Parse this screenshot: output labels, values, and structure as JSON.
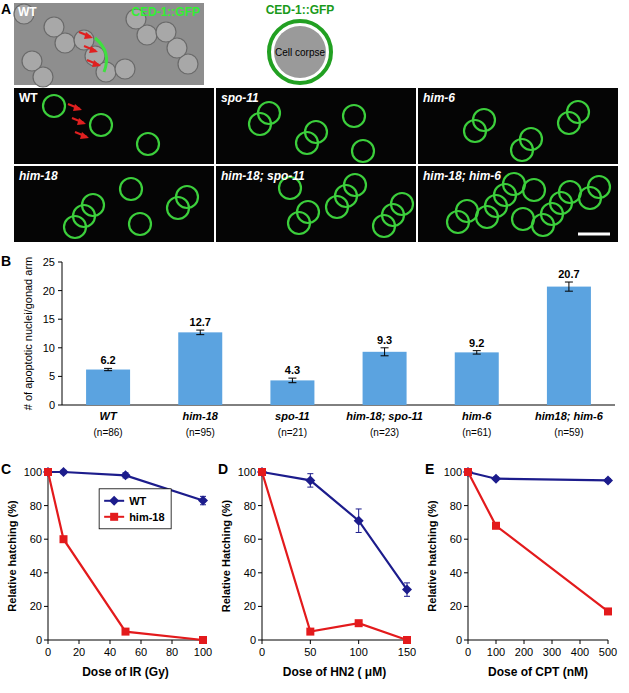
{
  "panel_a": {
    "panel": "A",
    "dic_label": "WT",
    "channel_label": "CED-1::GFP",
    "schematic_label": "CED-1::GFP",
    "schematic_inner": "Cell corpse",
    "images": [
      "WT",
      "spo-11",
      "him-6",
      "him-18",
      "him-18; spo-11",
      "him-18; him-6"
    ]
  },
  "chart_data": [
    {
      "panel": "B",
      "type": "bar",
      "categories": [
        "WT",
        "him-18",
        "spo-11",
        "him-18; spo-11",
        "him-6",
        "him18; him-6"
      ],
      "category_notes": [
        "(n=86)",
        "(n=95)",
        "(n=21)",
        "(n=23)",
        "(n=61)",
        "(n=59)"
      ],
      "values": [
        6.2,
        12.7,
        4.3,
        9.3,
        9.2,
        20.7
      ],
      "errors": [
        0.2,
        0.4,
        0.4,
        0.7,
        0.3,
        0.8
      ],
      "color": "#5ba3e0",
      "ylabel": "# of apoptotic nuclei/gonad arm",
      "ylim": [
        0,
        25
      ],
      "yticks": [
        0,
        5,
        10,
        15,
        20,
        25
      ],
      "data_labels": true,
      "grid": false
    },
    {
      "panel": "C",
      "type": "line",
      "x": [
        0,
        10,
        50,
        100
      ],
      "xlabel": "Dose of IR (Gy)",
      "ylabel": "Relative hatching (%)",
      "xlim": [
        0,
        100
      ],
      "xticks": [
        0,
        20,
        40,
        60,
        80,
        100
      ],
      "ylim": [
        0,
        100
      ],
      "yticks": [
        0,
        20,
        40,
        60,
        80,
        100
      ],
      "legend": "center",
      "series": [
        {
          "name": "WT",
          "color": "#1c1c8c",
          "marker": "diamond",
          "line_style": "solid",
          "values": [
            100,
            100,
            98,
            83
          ],
          "errors": [
            1,
            1,
            1.5,
            2.5
          ]
        },
        {
          "name": "him-18",
          "color": "#e31a1c",
          "marker": "square",
          "line_style": "solid",
          "values": [
            100,
            60,
            5,
            0
          ],
          "errors": [
            1,
            1.5,
            0.5,
            0
          ]
        }
      ]
    },
    {
      "panel": "D",
      "type": "line",
      "x": [
        0,
        50,
        100,
        150
      ],
      "xlabel": "Dose of HN2 ( μM)",
      "ylabel": "Relative Hatching (%)",
      "xlim": [
        0,
        150
      ],
      "xticks": [
        0,
        50,
        100,
        150
      ],
      "ylim": [
        0,
        100
      ],
      "yticks": [
        0,
        20,
        40,
        60,
        80,
        100
      ],
      "series": [
        {
          "color": "#1c1c8c",
          "marker": "diamond",
          "line_style": "solid",
          "values": [
            100,
            95,
            71,
            30
          ],
          "errors": [
            2,
            4,
            7,
            4
          ]
        },
        {
          "color": "#e31a1c",
          "marker": "square",
          "line_style": "solid",
          "values": [
            100,
            5,
            10,
            0
          ],
          "errors": [
            2,
            0.5,
            1,
            0
          ]
        }
      ]
    },
    {
      "panel": "E",
      "type": "line",
      "x": [
        0,
        100,
        500
      ],
      "xlabel": "Dose of CPT (nM)",
      "ylabel": "Relative hatching (%)",
      "xlim": [
        0,
        500
      ],
      "xticks": [
        0,
        100,
        200,
        300,
        400,
        500
      ],
      "ylim": [
        0,
        100
      ],
      "yticks": [
        0,
        20,
        40,
        60,
        80,
        100
      ],
      "series": [
        {
          "color": "#1c1c8c",
          "marker": "diamond",
          "line_style": "solid",
          "values": [
            100,
            96,
            95
          ],
          "errors": [
            1,
            1,
            1
          ]
        },
        {
          "color": "#e31a1c",
          "marker": "square",
          "line_style": "solid",
          "values": [
            100,
            68,
            17
          ],
          "errors": [
            1,
            1.5,
            1.5
          ]
        }
      ]
    }
  ]
}
